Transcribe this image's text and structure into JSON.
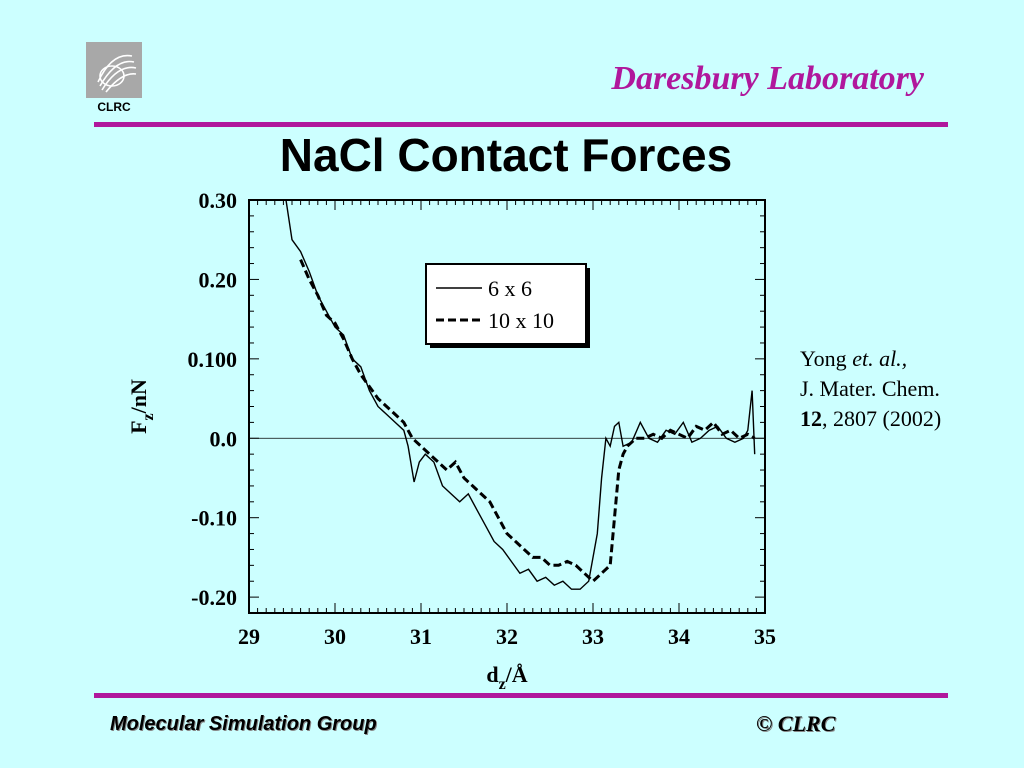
{
  "header": {
    "logo_text": "CLRC",
    "lab_name": "Daresbury Laboratory",
    "title": "NaCl Contact Forces"
  },
  "reference": {
    "author": "Yong",
    "etal": "et. al.,",
    "journal": "J. Mater. Chem.",
    "volume": "12",
    "pages_year": ", 2807 (2002)"
  },
  "footer": {
    "left": "Molecular Simulation Group",
    "right": "© CLRC"
  },
  "colors": {
    "accent": "#b0179c",
    "background": "#ccffff"
  },
  "chart_data": {
    "type": "line",
    "xlabel": {
      "main": "d",
      "sub": "z",
      "unit": "/Å"
    },
    "ylabel": {
      "main": "F",
      "sub": "z",
      "unit": "/nN"
    },
    "xlim": [
      29,
      35
    ],
    "ylim": [
      -0.22,
      0.3
    ],
    "x_ticks": [
      29,
      30,
      31,
      32,
      33,
      34,
      35
    ],
    "x_tick_labels": [
      "29",
      "30",
      "31",
      "32",
      "33",
      "34",
      "35"
    ],
    "y_ticks": [
      0.3,
      0.2,
      0.1,
      0.0,
      -0.1,
      -0.2
    ],
    "y_tick_labels": [
      "0.30",
      "0.20",
      "0.100",
      "0.0",
      "-0.10",
      "-0.20"
    ],
    "zero_line": true,
    "legend_position": "top-center",
    "series": [
      {
        "name": "6 x 6",
        "style": "solid",
        "x": [
          29.43,
          29.5,
          29.6,
          29.7,
          29.8,
          29.9,
          30.0,
          30.1,
          30.2,
          30.3,
          30.4,
          30.5,
          30.6,
          30.7,
          30.8,
          30.85,
          30.92,
          30.98,
          31.05,
          31.15,
          31.25,
          31.35,
          31.45,
          31.55,
          31.65,
          31.75,
          31.85,
          31.95,
          32.05,
          32.15,
          32.25,
          32.35,
          32.45,
          32.55,
          32.65,
          32.75,
          32.85,
          32.95,
          33.05,
          33.1,
          33.15,
          33.2,
          33.25,
          33.3,
          33.35,
          33.45,
          33.55,
          33.65,
          33.75,
          33.85,
          33.95,
          34.05,
          34.15,
          34.25,
          34.35,
          34.45,
          34.55,
          34.65,
          34.75,
          34.8,
          34.85,
          34.88
        ],
        "y": [
          0.3,
          0.25,
          0.235,
          0.21,
          0.18,
          0.16,
          0.14,
          0.13,
          0.1,
          0.09,
          0.06,
          0.04,
          0.03,
          0.02,
          0.01,
          -0.01,
          -0.055,
          -0.03,
          -0.02,
          -0.03,
          -0.06,
          -0.07,
          -0.08,
          -0.07,
          -0.09,
          -0.11,
          -0.13,
          -0.14,
          -0.155,
          -0.17,
          -0.165,
          -0.18,
          -0.175,
          -0.185,
          -0.18,
          -0.19,
          -0.19,
          -0.18,
          -0.12,
          -0.05,
          0.0,
          -0.01,
          0.015,
          0.02,
          -0.01,
          -0.005,
          0.02,
          0.0,
          -0.005,
          0.01,
          0.005,
          0.02,
          -0.005,
          0.0,
          0.01,
          0.015,
          0.0,
          -0.005,
          0.0,
          0.01,
          0.06,
          -0.02
        ]
      },
      {
        "name": "10 x 10",
        "style": "dashed",
        "x": [
          29.6,
          29.7,
          29.8,
          29.9,
          30.0,
          30.1,
          30.2,
          30.3,
          30.4,
          30.5,
          30.6,
          30.7,
          30.8,
          30.9,
          31.0,
          31.1,
          31.2,
          31.3,
          31.4,
          31.5,
          31.6,
          31.7,
          31.8,
          31.9,
          32.0,
          32.1,
          32.2,
          32.3,
          32.4,
          32.5,
          32.6,
          32.7,
          32.8,
          32.9,
          33.0,
          33.1,
          33.2,
          33.25,
          33.3,
          33.35,
          33.4,
          33.5,
          33.6,
          33.7,
          33.8,
          33.9,
          34.0,
          34.1,
          34.2,
          34.3,
          34.4,
          34.5,
          34.6,
          34.7,
          34.8,
          34.88
        ],
        "y": [
          0.225,
          0.2,
          0.18,
          0.155,
          0.145,
          0.125,
          0.1,
          0.08,
          0.065,
          0.05,
          0.04,
          0.03,
          0.02,
          0.0,
          -0.01,
          -0.02,
          -0.03,
          -0.04,
          -0.03,
          -0.05,
          -0.06,
          -0.07,
          -0.08,
          -0.1,
          -0.12,
          -0.13,
          -0.14,
          -0.15,
          -0.15,
          -0.16,
          -0.16,
          -0.155,
          -0.16,
          -0.17,
          -0.18,
          -0.17,
          -0.16,
          -0.1,
          -0.04,
          -0.02,
          -0.01,
          0.0,
          0.0,
          0.005,
          0.0,
          0.01,
          0.005,
          0.0,
          0.015,
          0.01,
          0.02,
          0.005,
          0.01,
          0.0,
          0.005,
          0.0
        ]
      }
    ]
  }
}
